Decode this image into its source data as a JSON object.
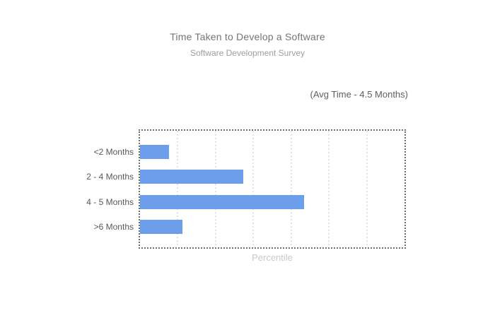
{
  "page": {
    "background": "#ffffff"
  },
  "chart_data": {
    "type": "bar",
    "orientation": "horizontal",
    "title": "Time Taken to Develop a Software",
    "subtitle": "Software Development Survey",
    "annotation": "(Avg Time - 4.5 Months)",
    "categories": [
      "<2 Months",
      "2 - 4 Months",
      "4 - 5 Months",
      ">6 Months"
    ],
    "values": [
      11,
      39,
      62,
      16
    ],
    "xlabel": "Percentile",
    "ylabel": "",
    "xlim": [
      0,
      100
    ],
    "x_tick_labels_visible": false,
    "legend": "none",
    "grid": {
      "vertical_gridline_count": 6,
      "style": "dotted"
    },
    "plot_border_style": "dotted",
    "colors": {
      "bar": "#6d9eeb",
      "plot_border": "#6e6e6e",
      "gridline": "#e2e2e2",
      "title": "#757575",
      "subtitle": "#9e9e9e",
      "annotation": "#5f5f5f",
      "category_label": "#58585a",
      "xlabel": "#c9c9c9",
      "background": "#ffffff"
    }
  }
}
